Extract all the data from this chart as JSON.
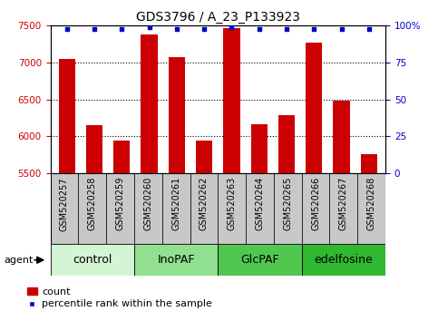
{
  "title": "GDS3796 / A_23_P133923",
  "samples": [
    "GSM520257",
    "GSM520258",
    "GSM520259",
    "GSM520260",
    "GSM520261",
    "GSM520262",
    "GSM520263",
    "GSM520264",
    "GSM520265",
    "GSM520266",
    "GSM520267",
    "GSM520268"
  ],
  "counts": [
    7050,
    6150,
    5950,
    7380,
    7070,
    5950,
    7470,
    6170,
    6290,
    7270,
    6490,
    5760
  ],
  "percentile_ranks": [
    98,
    98,
    98,
    99,
    98,
    98,
    99,
    98,
    98,
    98,
    98,
    98
  ],
  "groups": [
    {
      "label": "control",
      "start": 0,
      "end": 3,
      "color": "#d4f5d4"
    },
    {
      "label": "InoPAF",
      "start": 3,
      "end": 6,
      "color": "#90e090"
    },
    {
      "label": "GlcPAF",
      "start": 6,
      "end": 9,
      "color": "#50c850"
    },
    {
      "label": "edelfosine",
      "start": 9,
      "end": 12,
      "color": "#30b830"
    }
  ],
  "bar_color": "#cc0000",
  "dot_color": "#0000cc",
  "ylim_left": [
    5500,
    7500
  ],
  "ylim_right": [
    0,
    100
  ],
  "yticks_left": [
    5500,
    6000,
    6500,
    7000,
    7500
  ],
  "yticks_right": [
    0,
    25,
    50,
    75,
    100
  ],
  "background_cell": "#c8c8c8",
  "title_fontsize": 10,
  "tick_fontsize": 7.5,
  "label_fontsize": 9,
  "legend_fontsize": 8,
  "agent_label": "agent"
}
